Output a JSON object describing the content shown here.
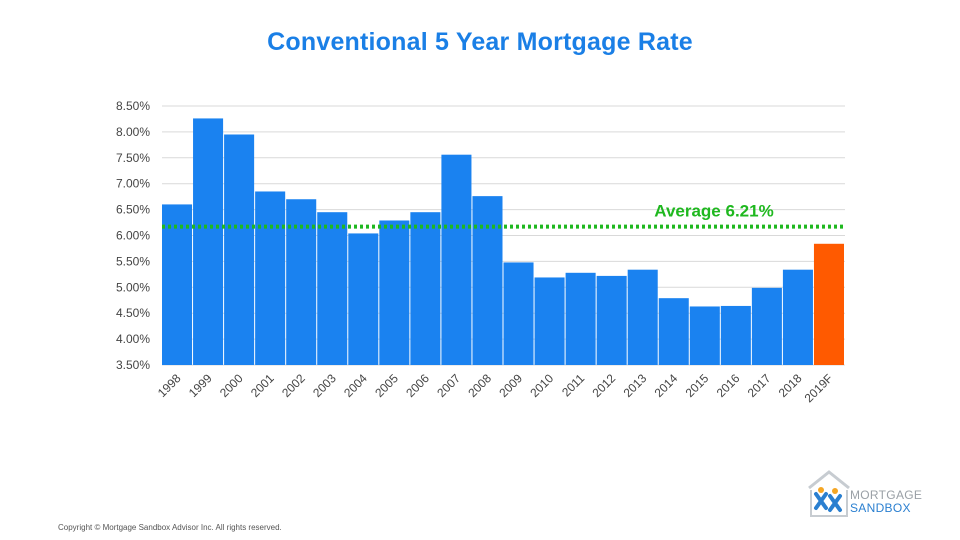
{
  "title": "Conventional 5 Year Mortgage Rate",
  "copyright": "Copyright © Mortgage Sandbox Advisor Inc. All rights reserved.",
  "logo": {
    "line1": "MORTGAGE",
    "line2": "SANDBOX"
  },
  "colors": {
    "title": "#1a7fe6",
    "bar": "#1a82f0",
    "forecast_bar": "#ff5a00",
    "average_line": "#1fb81f",
    "grid": "#d9d9d9",
    "axis_text": "#444444"
  },
  "chart_data": {
    "type": "bar",
    "title": "Conventional 5 Year Mortgage Rate",
    "xlabel": "",
    "ylabel": "",
    "categories": [
      "1998",
      "1999",
      "2000",
      "2001",
      "2002",
      "2003",
      "2004",
      "2005",
      "2006",
      "2007",
      "2008",
      "2009",
      "2010",
      "2011",
      "2012",
      "2013",
      "2014",
      "2015",
      "2016",
      "2017",
      "2018",
      "2019F"
    ],
    "values": [
      6.6,
      8.26,
      7.95,
      6.85,
      6.7,
      6.45,
      6.04,
      6.29,
      6.45,
      7.56,
      6.76,
      5.48,
      5.19,
      5.28,
      5.22,
      5.34,
      4.79,
      4.63,
      4.64,
      4.99,
      5.34,
      5.84
    ],
    "forecast_index": 21,
    "ylim": [
      3.5,
      8.5
    ],
    "yticks": [
      "3.50%",
      "4.00%",
      "4.50%",
      "5.00%",
      "5.50%",
      "6.00%",
      "6.50%",
      "7.00%",
      "7.50%",
      "8.00%",
      "8.50%"
    ],
    "ytick_values": [
      3.5,
      4.0,
      4.5,
      5.0,
      5.5,
      6.0,
      6.5,
      7.0,
      7.5,
      8.0,
      8.5
    ],
    "grid": true,
    "legend": "none",
    "average": {
      "value": 6.21,
      "label": "Average 6.21%"
    }
  }
}
